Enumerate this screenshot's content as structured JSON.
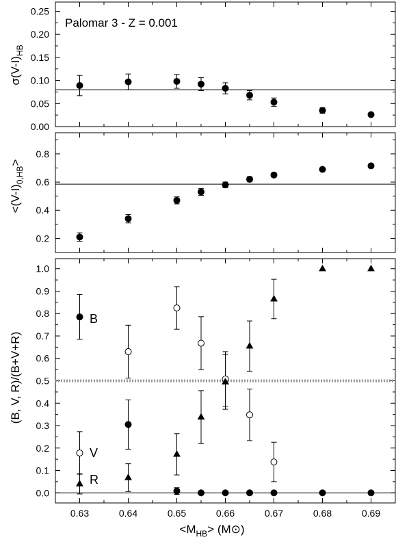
{
  "chart_data": [
    {
      "type": "scatter",
      "title": "",
      "annotation": "Palomar 3 - Z = 0.001",
      "ylabel": "σ(V-I)",
      "ylabel_sub": "HB",
      "xlim": [
        0.625,
        0.695
      ],
      "ylim": [
        0.0,
        0.27
      ],
      "yticks": [
        "0.00",
        "0.05",
        "0.10",
        "0.15",
        "0.20",
        "0.25"
      ],
      "reference_line": 0.08,
      "series": [
        {
          "marker": "filled-circle",
          "points": [
            {
              "x": 0.63,
              "y": 0.089,
              "err": 0.022
            },
            {
              "x": 0.64,
              "y": 0.097,
              "err": 0.017
            },
            {
              "x": 0.65,
              "y": 0.098,
              "err": 0.015
            },
            {
              "x": 0.655,
              "y": 0.092,
              "err": 0.014
            },
            {
              "x": 0.66,
              "y": 0.083,
              "err": 0.012
            },
            {
              "x": 0.665,
              "y": 0.068,
              "err": 0.01
            },
            {
              "x": 0.67,
              "y": 0.053,
              "err": 0.009
            },
            {
              "x": 0.68,
              "y": 0.035,
              "err": 0.006
            },
            {
              "x": 0.69,
              "y": 0.026,
              "err": 0.004
            }
          ]
        }
      ]
    },
    {
      "type": "scatter",
      "title": "",
      "ylabel": "<(V-I)",
      "ylabel_sub": "0,HB",
      "ylabel_end": ">",
      "xlim": [
        0.625,
        0.695
      ],
      "ylim": [
        0.1,
        0.95
      ],
      "yticks": [
        "0.2",
        "0.4",
        "0.6",
        "0.8"
      ],
      "reference_line": 0.585,
      "series": [
        {
          "marker": "filled-circle",
          "points": [
            {
              "x": 0.63,
              "y": 0.21,
              "err": 0.03
            },
            {
              "x": 0.64,
              "y": 0.34,
              "err": 0.03
            },
            {
              "x": 0.65,
              "y": 0.47,
              "err": 0.025
            },
            {
              "x": 0.655,
              "y": 0.53,
              "err": 0.025
            },
            {
              "x": 0.66,
              "y": 0.58,
              "err": 0.02
            },
            {
              "x": 0.665,
              "y": 0.62,
              "err": 0.018
            },
            {
              "x": 0.67,
              "y": 0.65,
              "err": 0.015
            },
            {
              "x": 0.68,
              "y": 0.69,
              "err": 0.012
            },
            {
              "x": 0.69,
              "y": 0.715,
              "err": 0.01
            }
          ]
        }
      ]
    },
    {
      "type": "scatter",
      "title": "",
      "ylabel": "(B, V, R)/(B+V+R)",
      "xlabel": "<M",
      "xlabel_sub": "HB",
      "xlabel_end": "> (M",
      "xlabel_sun": "⊙",
      "xlabel_close": ")",
      "xlim": [
        0.625,
        0.695
      ],
      "ylim": [
        -0.045,
        1.045
      ],
      "xticks": [
        "0.63",
        "0.64",
        "0.65",
        "0.66",
        "0.67",
        "0.68",
        "0.69"
      ],
      "yticks": [
        "0.0",
        "0.1",
        "0.2",
        "0.3",
        "0.4",
        "0.5",
        "0.6",
        "0.7",
        "0.8",
        "0.9",
        "1.0"
      ],
      "reference_line": 0.0,
      "dotted_line": 0.5,
      "series": [
        {
          "name": "B",
          "marker": "filled-circle",
          "points": [
            {
              "x": 0.63,
              "y": 0.785,
              "err": 0.1
            },
            {
              "x": 0.64,
              "y": 0.305,
              "err": 0.11
            },
            {
              "x": 0.65,
              "y": 0.008,
              "err": 0.015
            },
            {
              "x": 0.655,
              "y": 0.0,
              "err": 0
            },
            {
              "x": 0.66,
              "y": 0.0,
              "err": 0
            },
            {
              "x": 0.665,
              "y": 0.0,
              "err": 0
            },
            {
              "x": 0.67,
              "y": 0.0,
              "err": 0
            },
            {
              "x": 0.68,
              "y": 0.0,
              "err": 0
            },
            {
              "x": 0.69,
              "y": 0.0,
              "err": 0
            }
          ]
        },
        {
          "name": "V",
          "marker": "open-circle",
          "points": [
            {
              "x": 0.63,
              "y": 0.178,
              "err": 0.095
            },
            {
              "x": 0.64,
              "y": 0.63,
              "err": 0.118
            },
            {
              "x": 0.65,
              "y": 0.825,
              "err": 0.095
            },
            {
              "x": 0.655,
              "y": 0.668,
              "err": 0.118
            },
            {
              "x": 0.66,
              "y": 0.508,
              "err": 0.122
            },
            {
              "x": 0.665,
              "y": 0.348,
              "err": 0.115
            },
            {
              "x": 0.67,
              "y": 0.138,
              "err": 0.088
            }
          ]
        },
        {
          "name": "R",
          "marker": "filled-triangle",
          "points": [
            {
              "x": 0.63,
              "y": 0.04,
              "err": 0.045
            },
            {
              "x": 0.64,
              "y": 0.068,
              "err": 0.062
            },
            {
              "x": 0.65,
              "y": 0.172,
              "err": 0.092
            },
            {
              "x": 0.655,
              "y": 0.338,
              "err": 0.118
            },
            {
              "x": 0.66,
              "y": 0.495,
              "err": 0.122
            },
            {
              "x": 0.665,
              "y": 0.655,
              "err": 0.112
            },
            {
              "x": 0.67,
              "y": 0.865,
              "err": 0.088
            },
            {
              "x": 0.68,
              "y": 1.0,
              "err": 0
            },
            {
              "x": 0.69,
              "y": 1.0,
              "err": 0
            }
          ]
        }
      ]
    }
  ]
}
